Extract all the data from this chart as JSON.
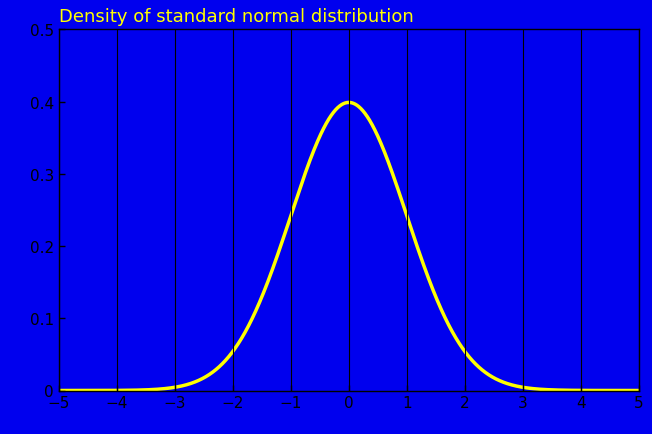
{
  "title": "Density of standard normal distribution",
  "title_color": "#FFFF00",
  "title_fontsize": 13,
  "title_fontweight": "normal",
  "background_color": "#0000EE",
  "axes_facecolor": "#0000EE",
  "figure_facecolor": "#0000EE",
  "line_color": "#FFFF00",
  "line_width": 2.5,
  "grid_color": "#000000",
  "grid_linewidth": 0.8,
  "tick_color": "#000000",
  "tick_labelcolor": "#000000",
  "tick_labelsize": 11,
  "spine_color": "#000000",
  "spine_linewidth": 1.0,
  "xlim": [
    -5,
    5
  ],
  "ylim": [
    0,
    0.5
  ],
  "xticks": [
    -5,
    -4,
    -3,
    -2,
    -1,
    0,
    1,
    2,
    3,
    4,
    5
  ],
  "yticks": [
    0,
    0.1,
    0.2,
    0.3,
    0.4,
    0.5
  ],
  "ytick_labels": [
    "0",
    "0.1",
    "0.2",
    "0.3",
    "0.4",
    "0.5"
  ]
}
